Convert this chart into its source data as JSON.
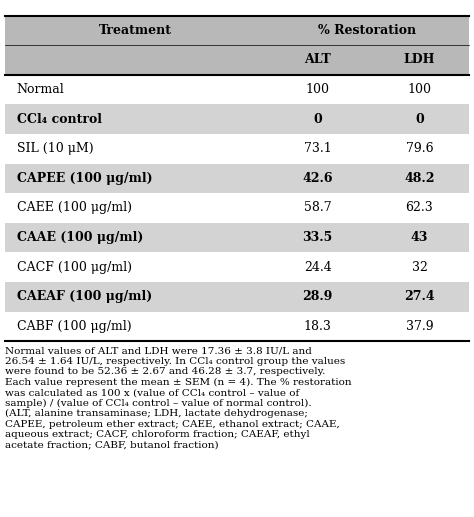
{
  "title_col1": "Treatment",
  "title_col2": "% Restoration",
  "subtitle_col2": "ALT",
  "subtitle_col3": "LDH",
  "rows": [
    [
      "Normal",
      "100",
      "100"
    ],
    [
      "CCl₄ control",
      "0",
      "0"
    ],
    [
      "SIL (10 μM)",
      "73.1",
      "79.6"
    ],
    [
      "CAPEE (100 μg/ml)",
      "42.6",
      "48.2"
    ],
    [
      "CAEE (100 μg/ml)",
      "58.7",
      "62.3"
    ],
    [
      "CAAE (100 μg/ml)",
      "33.5",
      "43"
    ],
    [
      "CACF (100 μg/ml)",
      "24.4",
      "32"
    ],
    [
      "CAEAF (100 μg/ml)",
      "28.9",
      "27.4"
    ],
    [
      "CABF (100 μg/ml)",
      "18.3",
      "37.9"
    ]
  ],
  "footer_text": "Normal values of ALT and LDH were 17.36 ± 3.8 IU/L and\n26.54 ± 1.64 IU/L, respectively. In CCl₄ control group the values\nwere found to be 52.36 ± 2.67 and 46.28 ± 3.7, respectively.\nEach value represent the mean ± SEM (n = 4). The % restoration\nwas calculated as 100 x (value of CCl₄ control – value of\nsample) / (value of CCl₄ control – value of normal control).\n(ALT, alanine transaminase; LDH, lactate dehydrogenase;\nCAPEE, petroleum ether extract; CAEE, ethanol extract; CAAE,\naqueous extract; CACF, chloroform fraction; CAEAF, ethyl\nacetate fraction; CABF, butanol fraction)",
  "shaded_rows": [
    1,
    3,
    5,
    7
  ],
  "shaded_color": "#d3d3d3",
  "white_color": "#ffffff",
  "header_bg": "#b8b8b8",
  "bold_rows": [
    1,
    3,
    5,
    7
  ],
  "font_size": 9,
  "footer_font_size": 7.5
}
